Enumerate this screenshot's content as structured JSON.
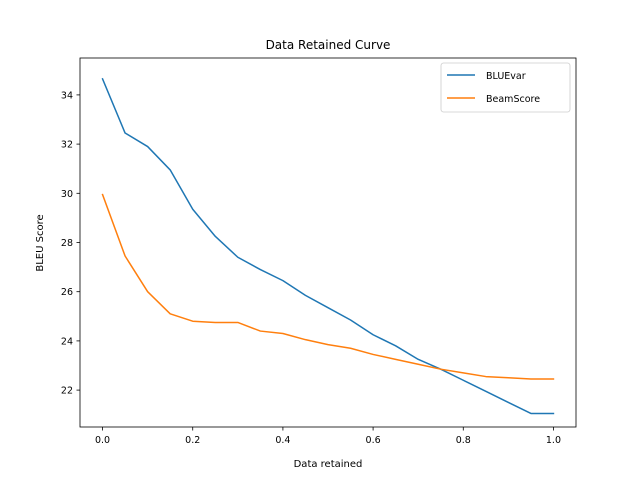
{
  "chart_data": {
    "type": "line",
    "title": "Data Retained Curve",
    "xlabel": "Data retained",
    "ylabel": "BLEU Score",
    "xlim": [
      -0.05,
      1.05
    ],
    "ylim": [
      20.5,
      35.5
    ],
    "x_ticks": [
      0.0,
      0.2,
      0.4,
      0.6,
      0.8,
      1.0
    ],
    "x_tick_labels": [
      "0.0",
      "0.2",
      "0.4",
      "0.6",
      "0.8",
      "1.0"
    ],
    "y_ticks": [
      22,
      24,
      26,
      28,
      30,
      32,
      34
    ],
    "y_tick_labels": [
      "22",
      "24",
      "26",
      "28",
      "30",
      "32",
      "34"
    ],
    "grid": false,
    "legend_position": "upper right",
    "x": [
      0.0,
      0.05,
      0.1,
      0.15,
      0.2,
      0.25,
      0.3,
      0.35,
      0.4,
      0.45,
      0.5,
      0.55,
      0.6,
      0.65,
      0.7,
      0.75,
      0.8,
      0.85,
      0.9,
      0.95,
      1.0
    ],
    "series": [
      {
        "name": "BLUEvar",
        "color": "#1f77b4",
        "values": [
          34.65,
          32.45,
          31.9,
          30.95,
          29.35,
          28.25,
          27.4,
          26.9,
          26.45,
          25.85,
          25.35,
          24.85,
          24.25,
          23.8,
          23.25,
          22.85,
          22.4,
          21.95,
          21.5,
          21.05,
          21.05
        ]
      },
      {
        "name": "BeamScore",
        "color": "#ff7f0e",
        "values": [
          29.95,
          27.45,
          26.0,
          25.1,
          24.8,
          24.75,
          24.75,
          24.4,
          24.3,
          24.05,
          23.85,
          23.7,
          23.45,
          23.25,
          23.05,
          22.85,
          22.7,
          22.55,
          22.5,
          22.45,
          22.45
        ]
      }
    ]
  }
}
